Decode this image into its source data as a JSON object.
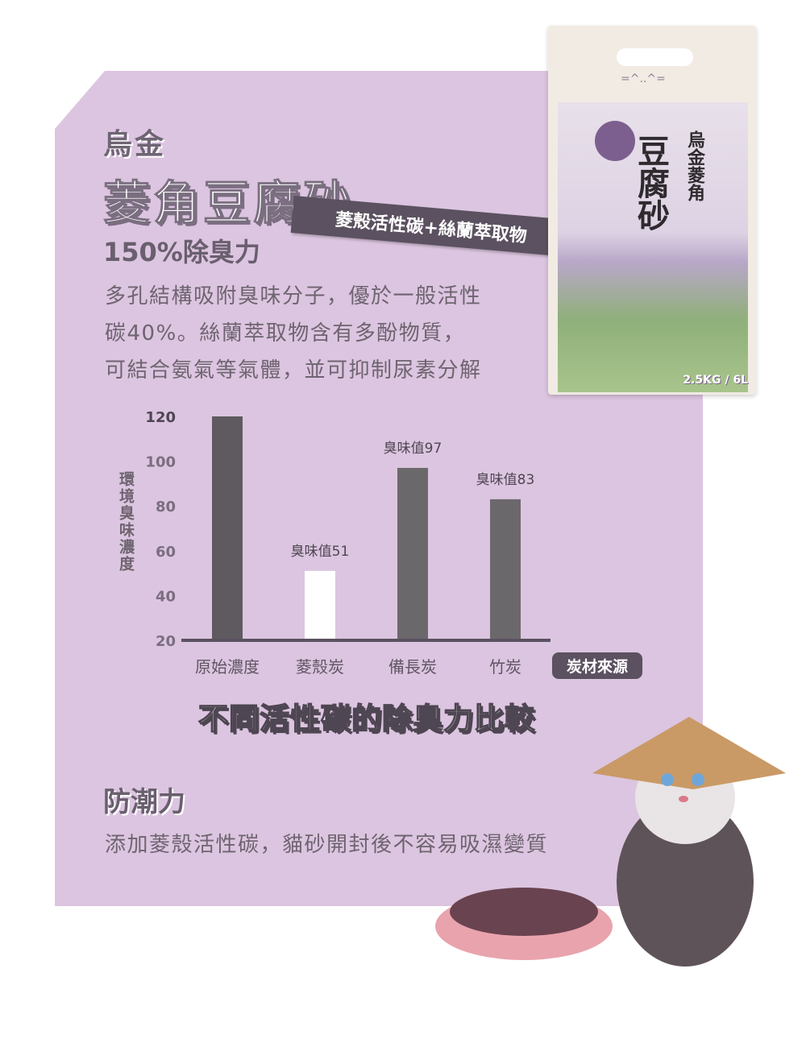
{
  "header": {
    "brand": "烏金",
    "title": "菱角豆腐砂",
    "subtitle": "150%除臭力",
    "tag": "菱殼活性碳+絲蘭萃取物"
  },
  "description": [
    "多孔結構吸附臭味分子，優於一般活性",
    "碳40%。絲蘭萃取物含有多酚物質，",
    "可結合氨氣等氣體，並可抑制尿素分解"
  ],
  "package": {
    "title": "豆腐砂",
    "name": "烏金菱角",
    "weight": "2.5KG / 6L"
  },
  "chart_data": {
    "type": "bar",
    "title": "不同活性碳的除臭力比較",
    "xlabel": "炭材來源",
    "ylabel": "環境臭味濃度",
    "categories": [
      "原始濃度",
      "菱殼炭",
      "備長炭",
      "竹炭"
    ],
    "values": [
      120,
      51,
      97,
      83
    ],
    "data_labels": [
      "",
      "臭味值51",
      "臭味值97",
      "臭味值83"
    ],
    "yticks": [
      20,
      40,
      60,
      80,
      100,
      120
    ],
    "ylim": [
      20,
      120
    ],
    "grid": false,
    "colors": [
      "#5f5a60",
      "#ffffff",
      "#6b686c",
      "#6b686c"
    ]
  },
  "section2": {
    "title": "防潮力",
    "body": "添加菱殼活性碳，貓砂開封後不容易吸濕變質"
  },
  "colors": {
    "panel": "#dcc5e0",
    "dark": "#5b5160"
  }
}
